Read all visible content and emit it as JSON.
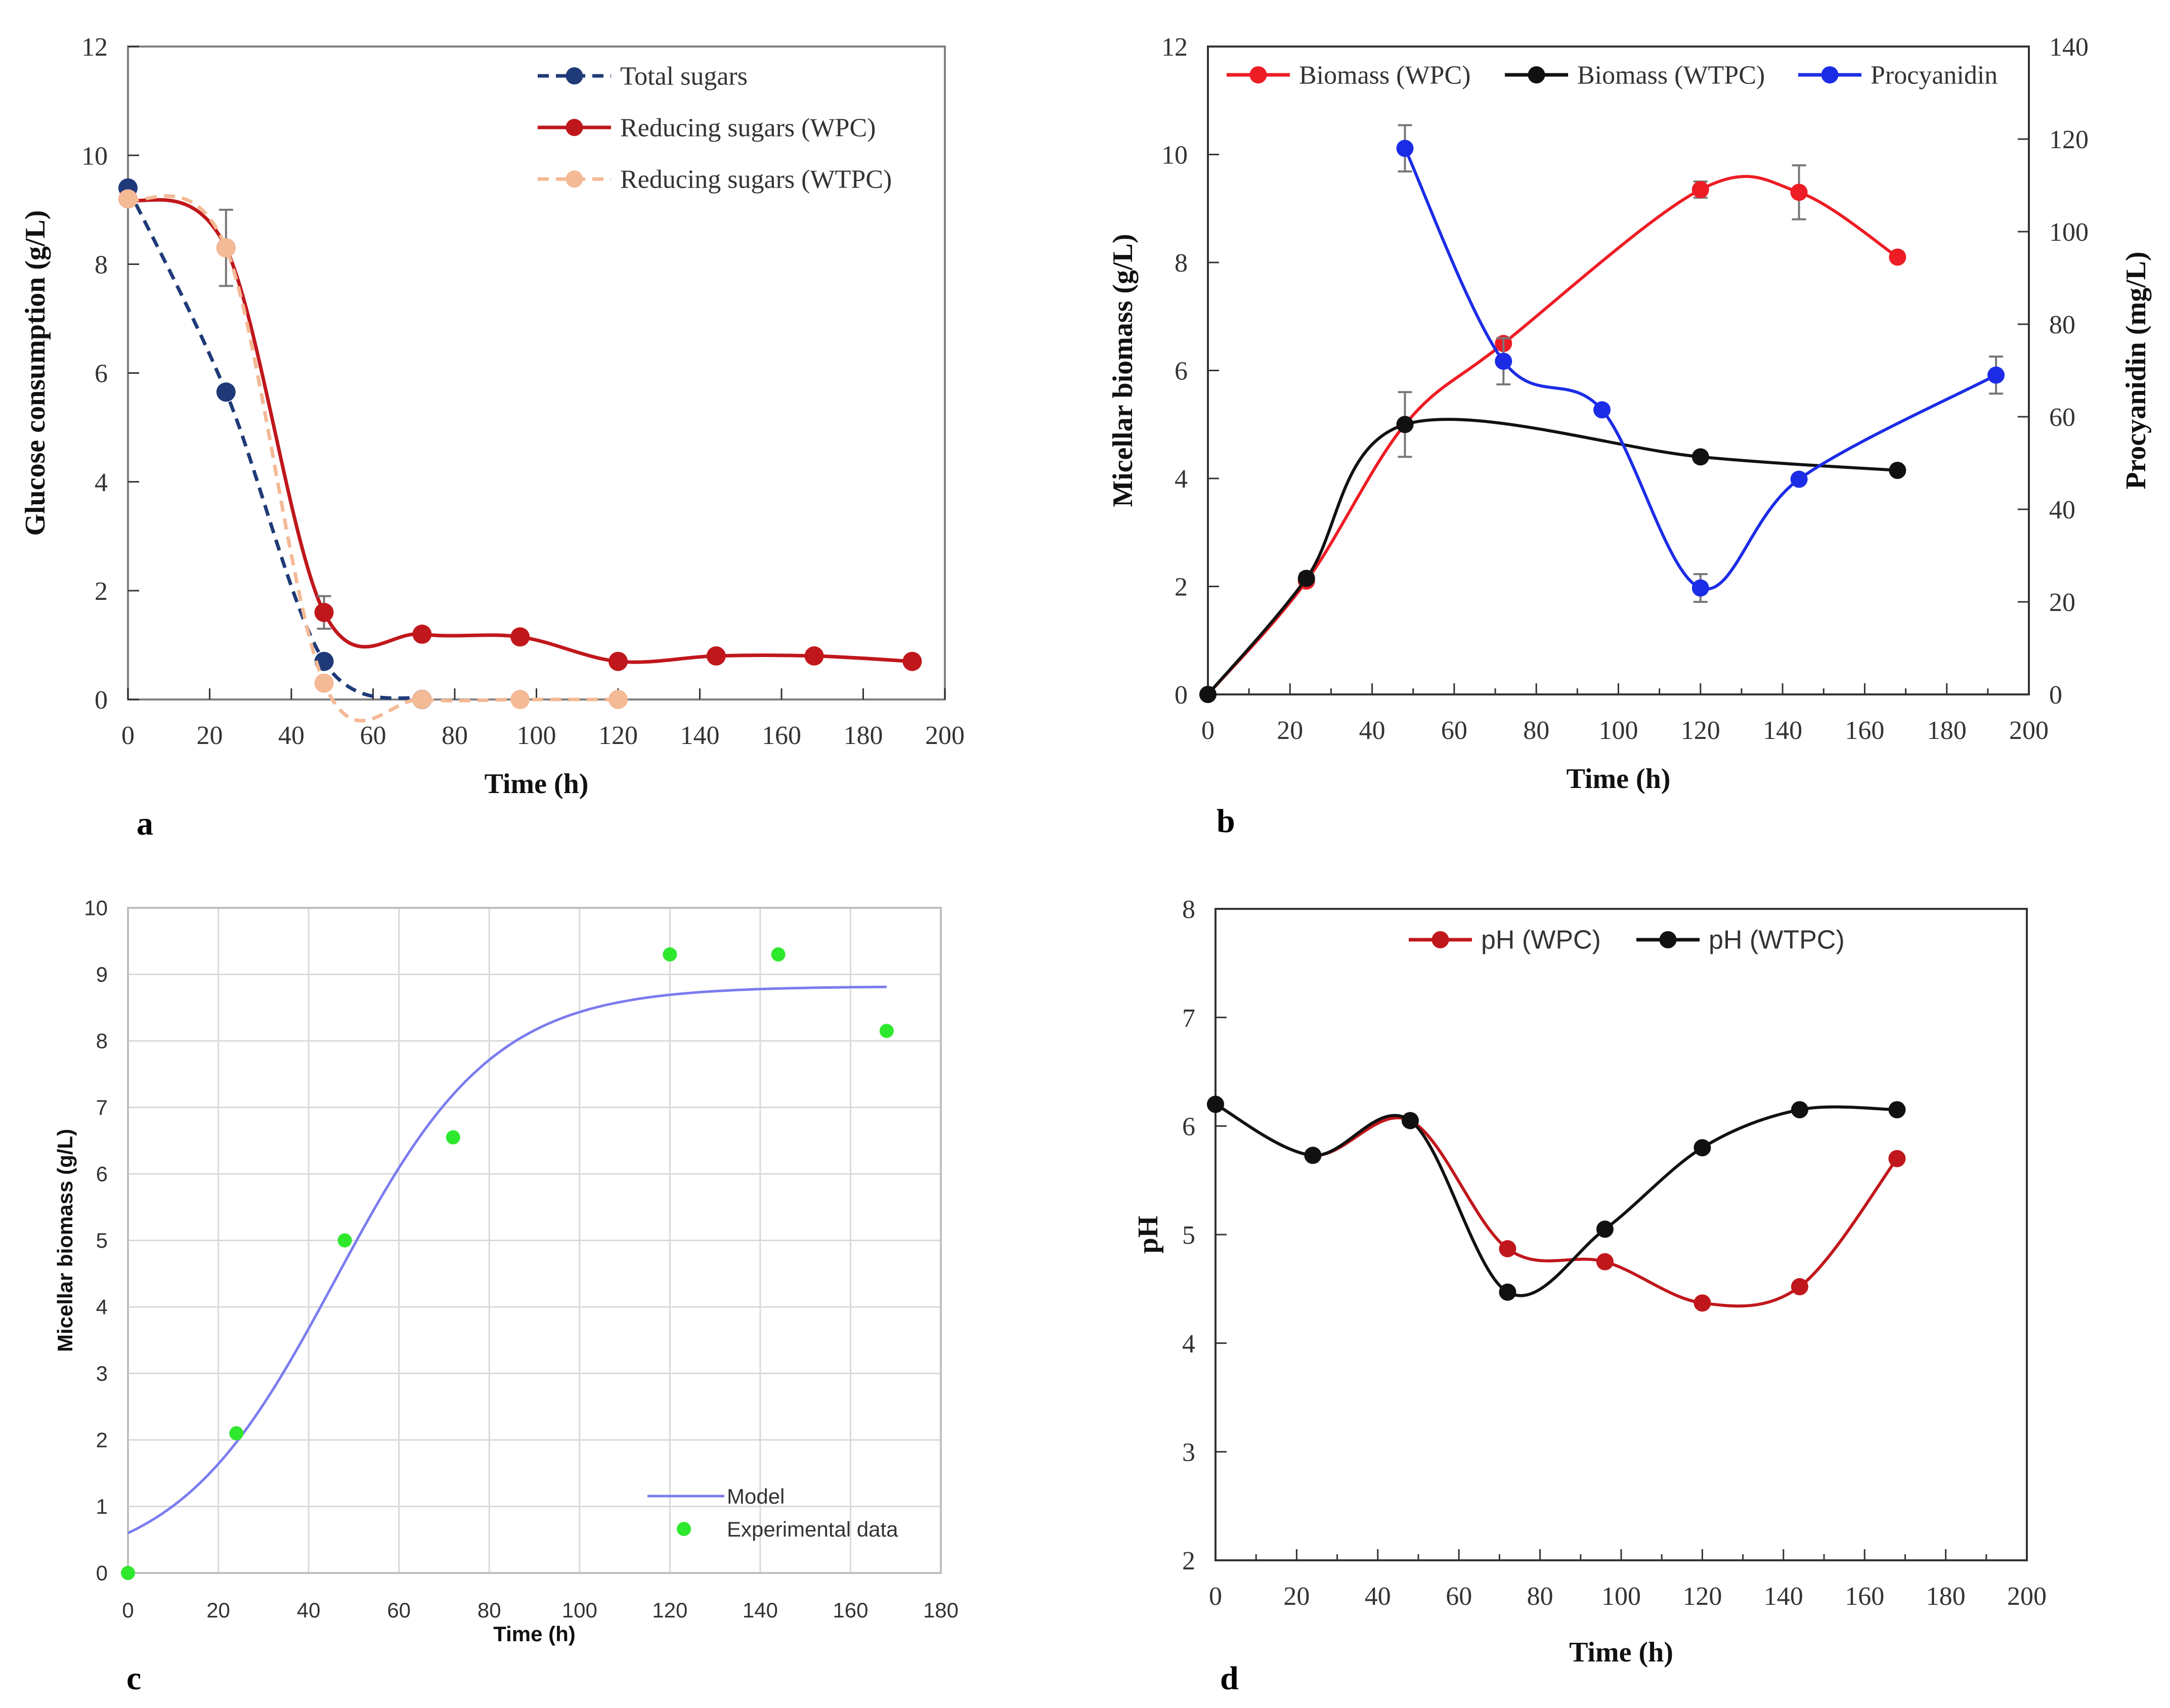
{
  "chart_data": [
    {
      "panel": "a",
      "type": "line",
      "xlabel": "Time (h)",
      "ylabel": "Glucose consumption  (g/L)",
      "xlim": [
        0,
        200
      ],
      "ylim": [
        0,
        12
      ],
      "xticks": [
        "0",
        "20",
        "40",
        "60",
        "80",
        "100",
        "120",
        "140",
        "160",
        "180",
        "200"
      ],
      "yticks": [
        "0",
        "2",
        "4",
        "6",
        "8",
        "10",
        "12"
      ],
      "grid": false,
      "legend_position": "top-right",
      "series": [
        {
          "name": "Total sugars",
          "color": "#1f3a78",
          "style": "dashed",
          "x": [
            0,
            24,
            48,
            72
          ],
          "y": [
            9.4,
            5.65,
            0.7,
            0.0
          ],
          "err": [
            0,
            0,
            0,
            0
          ]
        },
        {
          "name": "Reducing sugars (WPC)",
          "color": "#c0171c",
          "style": "solid",
          "x": [
            0,
            24,
            48,
            72,
            96,
            120,
            144,
            168,
            192
          ],
          "y": [
            9.2,
            8.3,
            1.6,
            1.2,
            1.15,
            0.7,
            0.8,
            0.8,
            0.7
          ],
          "err": [
            0,
            0.7,
            0.3,
            0,
            0,
            0,
            0,
            0,
            0
          ]
        },
        {
          "name": "Reducing sugars (WTPC)",
          "color": "#f4b995",
          "style": "dashed",
          "x": [
            0,
            24,
            48,
            72,
            96,
            120
          ],
          "y": [
            9.2,
            8.3,
            0.3,
            0.0,
            0.0,
            0.0
          ],
          "err": [
            0,
            0,
            0,
            0,
            0,
            0
          ]
        }
      ]
    },
    {
      "panel": "b",
      "type": "line",
      "xlabel": "Time (h)",
      "ylabel": "Micellar biomass (g/L)",
      "y2label": "Procyanidin  (mg/L)",
      "xlim": [
        0,
        200
      ],
      "ylim": [
        0,
        12
      ],
      "y2lim": [
        0,
        140
      ],
      "xticks": [
        "0",
        "20",
        "40",
        "60",
        "80",
        "100",
        "120",
        "140",
        "160",
        "180",
        "200"
      ],
      "yticks": [
        "0",
        "2",
        "4",
        "6",
        "8",
        "10",
        "12"
      ],
      "y2ticks": [
        "0",
        "20",
        "40",
        "60",
        "80",
        "100",
        "120",
        "140"
      ],
      "grid": false,
      "legend_position": "top",
      "series": [
        {
          "name": "Biomass (WPC)",
          "color": "#ee1c24",
          "axis": "left",
          "x": [
            0,
            24,
            48,
            72,
            120,
            144,
            168
          ],
          "y": [
            0,
            2.1,
            5.0,
            6.5,
            9.35,
            9.3,
            8.1
          ],
          "err": [
            0,
            0,
            0,
            0,
            0.15,
            0.5,
            0
          ]
        },
        {
          "name": "Biomass (WTPC)",
          "color": "#111111",
          "axis": "left",
          "x": [
            0,
            24,
            48,
            120,
            168
          ],
          "y": [
            0,
            2.15,
            5.0,
            4.4,
            4.15
          ],
          "err": [
            0,
            0.1,
            0.6,
            0,
            0
          ]
        },
        {
          "name": "Procyanidin",
          "color": "#1c2ce6",
          "axis": "right",
          "x": [
            48,
            72,
            96,
            120,
            144,
            192
          ],
          "y": [
            118,
            72,
            61.5,
            23,
            46.5,
            69
          ],
          "err": [
            5,
            5,
            0,
            3,
            0,
            4
          ]
        }
      ]
    },
    {
      "panel": "c",
      "type": "scatter",
      "xlabel": "Time (h)",
      "ylabel": "Micellar biomass (g/L)",
      "xlim": [
        0,
        180
      ],
      "ylim": [
        0,
        10
      ],
      "xticks": [
        "0",
        "20",
        "40",
        "60",
        "80",
        "100",
        "120",
        "140",
        "160",
        "180"
      ],
      "yticks": [
        "0",
        "1",
        "2",
        "3",
        "4",
        "5",
        "6",
        "7",
        "8",
        "9",
        "10"
      ],
      "grid": true,
      "legend_position": "bottom-right",
      "model": {
        "name": "Model",
        "color": "#7b7bf0",
        "type": "logistic",
        "x0": 0.6,
        "xmax": 8.82,
        "rate": 0.057,
        "t_end": 168
      },
      "series": [
        {
          "name": "Experimental data",
          "color": "#2ee82e",
          "x": [
            0,
            24,
            48,
            72,
            120,
            144,
            168
          ],
          "y": [
            0,
            2.1,
            5.0,
            6.55,
            9.3,
            9.3,
            8.15
          ]
        }
      ]
    },
    {
      "panel": "d",
      "type": "line",
      "xlabel": "Time (h)",
      "ylabel": "pH",
      "xlim": [
        0,
        200
      ],
      "ylim": [
        2,
        8
      ],
      "xticks": [
        "0",
        "20",
        "40",
        "60",
        "80",
        "100",
        "120",
        "140",
        "160",
        "180",
        "200"
      ],
      "yticks": [
        "2",
        "3",
        "4",
        "5",
        "6",
        "7",
        "8"
      ],
      "grid": false,
      "legend_position": "top",
      "series": [
        {
          "name": "pH (WPC)",
          "color": "#c0171c",
          "x": [
            0,
            24,
            48,
            72,
            96,
            120,
            144,
            168
          ],
          "y": [
            6.2,
            5.73,
            6.05,
            4.87,
            4.75,
            4.37,
            4.52,
            5.7
          ]
        },
        {
          "name": "pH (WTPC)",
          "color": "#111111",
          "x": [
            0,
            24,
            48,
            72,
            96,
            120,
            144,
            168
          ],
          "y": [
            6.2,
            5.73,
            6.05,
            4.47,
            5.05,
            5.8,
            6.15,
            6.15
          ]
        }
      ]
    }
  ],
  "panel_labels": [
    "a",
    "b",
    "c",
    "d"
  ]
}
